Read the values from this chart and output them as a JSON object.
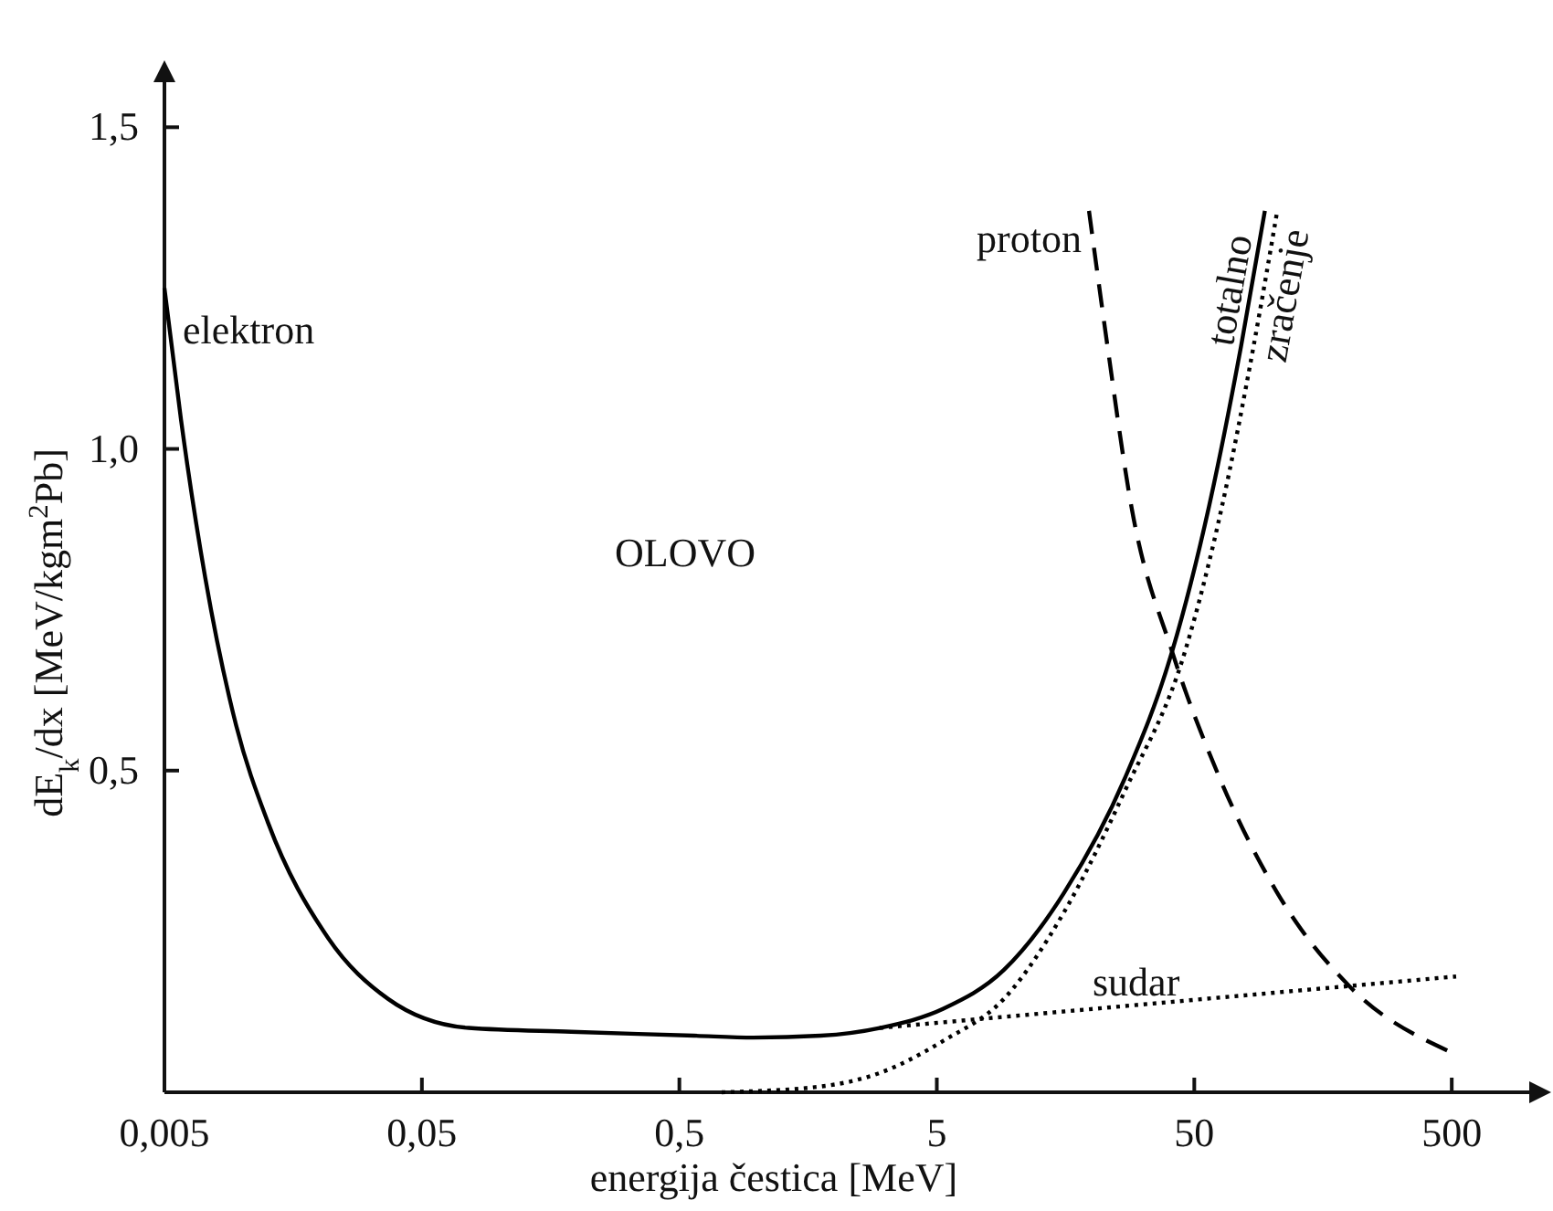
{
  "chart_data": {
    "type": "line",
    "xlabel": "energija čestica [MeV]",
    "ylabel": "dE$_{k}$/dx [MeV/kgm$^{2}$Pb]",
    "log": "x",
    "grid": false,
    "marker": "none",
    "xlim": [
      0.005,
      1000
    ],
    "xticks": [
      {
        "value": 0.005,
        "label": "0,005"
      },
      {
        "value": 0.05,
        "label": "0,05"
      },
      {
        "value": 0.5,
        "label": "0,5"
      },
      5,
      50,
      500
    ],
    "ylim": [
      0,
      1.57
    ],
    "yticks": [
      {
        "value": 0.5,
        "label": "0,5"
      },
      {
        "value": 1.0,
        "label": "1,0"
      },
      {
        "value": 1.5,
        "label": "1,5"
      }
    ],
    "series": [
      {
        "color": "#000000",
        "line_style": "solid",
        "x": [
          0.005,
          0.0058,
          0.0072,
          0.0095,
          0.0126,
          0.0216,
          0.037,
          0.076,
          0.19,
          0.57,
          0.97,
          1.77,
          3.0,
          5.3,
          9.1,
          15.6,
          27,
          41,
          57,
          76,
          94
        ],
        "values": [
          1.25,
          1.045,
          0.8,
          0.57,
          0.42,
          0.24,
          0.145,
          0.1,
          0.094,
          0.088,
          0.085,
          0.088,
          0.1,
          0.13,
          0.19,
          0.31,
          0.49,
          0.685,
          0.91,
          1.16,
          1.37
        ]
      },
      {
        "color": "#000000",
        "line_style": "dotted",
        "x": [
          0.73,
          1.77,
          3.0,
          5.3,
          9.1,
          15.6,
          27,
          46,
          64,
          85,
          105
        ],
        "values": [
          0,
          0.009,
          0.03,
          0.08,
          0.145,
          0.28,
          0.47,
          0.685,
          0.91,
          1.16,
          1.37
        ]
      },
      {
        "color": "#000000",
        "line_style": "dashed",
        "x": [
          19.5,
          23,
          28.5,
          41,
          61,
          105,
          200,
          480
        ],
        "values": [
          1.37,
          1.16,
          0.91,
          0.685,
          0.5,
          0.31,
          0.165,
          0.065
        ]
      },
      {
        "color": "#000000",
        "line_style": "dotted",
        "x": [
          3.0,
          520
        ],
        "values": [
          0.1,
          0.18
        ]
      }
    ],
    "annotations": [
      "elektron",
      "proton",
      "totalno",
      "zračenje",
      "sudar",
      "OLOVO"
    ]
  }
}
